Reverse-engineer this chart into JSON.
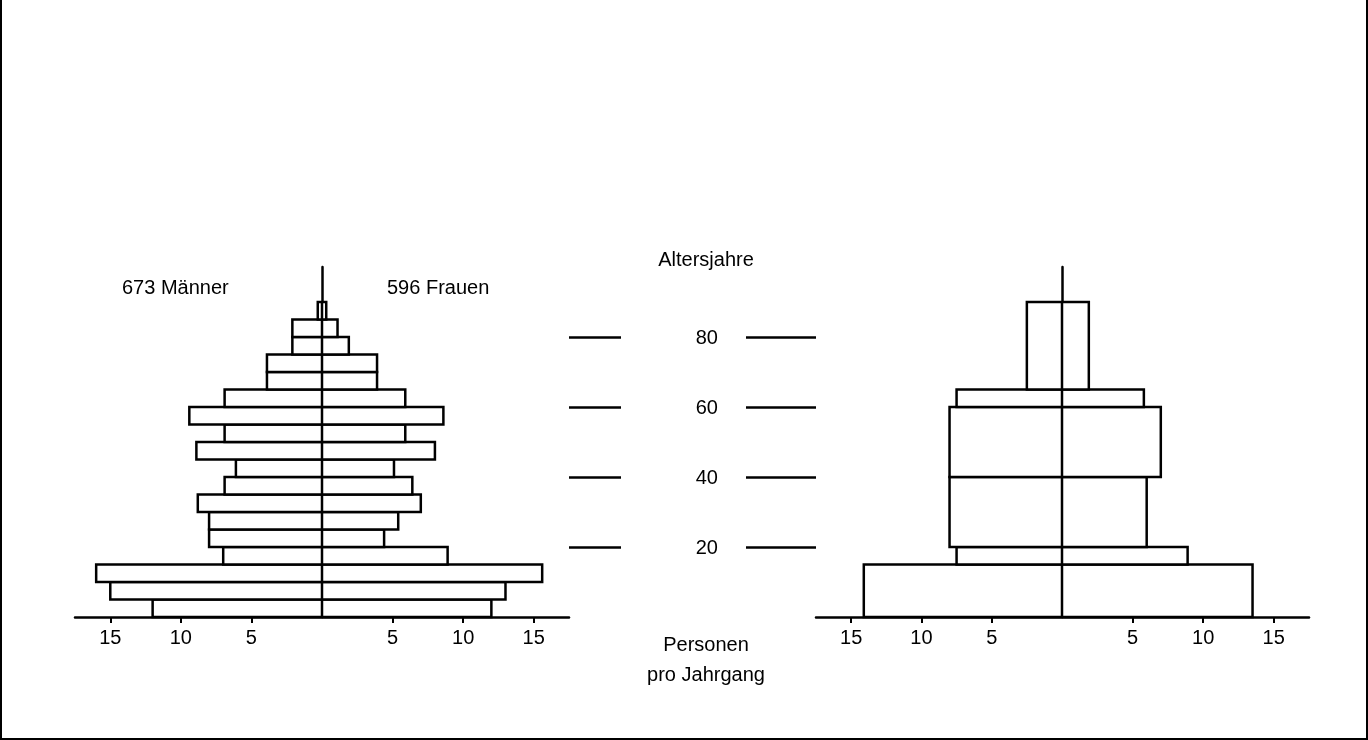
{
  "chart_data": [
    {
      "type": "histogram",
      "orientation": "horizontal",
      "title": "673 Männer",
      "bins": [
        0,
        5,
        10,
        15,
        20,
        25,
        30,
        35,
        40,
        45,
        50,
        55,
        60,
        65,
        70,
        75,
        80,
        85,
        90
      ],
      "values": [
        12,
        15,
        16,
        7,
        8,
        8,
        8.8,
        6.9,
        6.1,
        8.9,
        6.9,
        9.4,
        6.9,
        3.9,
        3.9,
        2.1,
        2.1,
        0.3
      ],
      "color": "#ffffff",
      "xlim": [
        17.5,
        0
      ],
      "xticks": [
        15,
        10,
        5
      ],
      "ylim": [
        0,
        100
      ],
      "tick_labels": "x",
      "grid": false
    },
    {
      "type": "histogram",
      "orientation": "horizontal",
      "title": "596 Frauen",
      "bins": [
        0,
        5,
        10,
        15,
        20,
        25,
        30,
        35,
        40,
        45,
        50,
        55,
        60,
        65,
        70,
        75,
        80,
        85,
        90
      ],
      "values": [
        12,
        13,
        15.6,
        8.9,
        4.4,
        5.4,
        7,
        6.4,
        5.1,
        8,
        5.9,
        8.6,
        5.9,
        3.9,
        3.9,
        1.9,
        1.1,
        0.3
      ],
      "color": "#ffffff",
      "xlim": [
        0,
        17.5
      ],
      "xticks": [
        5,
        10,
        15
      ],
      "ylim": [
        0,
        100
      ],
      "yticks": [
        {
          "value": 20,
          "label": null
        },
        {
          "value": 40,
          "label": null
        },
        {
          "value": 60,
          "label": null
        },
        {
          "value": 80,
          "label": null
        }
      ],
      "tick_labels": "x",
      "grid": false
    },
    {
      "type": "histogram",
      "orientation": "horizontal",
      "ylabel": "Altersjahre",
      "xlabel": "Personen\npro Jahrgang",
      "bins": [
        0,
        15,
        20,
        40,
        60,
        65,
        90
      ],
      "values": [
        14.1,
        7.5,
        8,
        8,
        7.5,
        2.5
      ],
      "color": "#ffffff",
      "xlim": [
        17.5,
        0
      ],
      "xticks": [
        15,
        10,
        5
      ],
      "ylim": [
        0,
        100
      ],
      "yticks": [
        20,
        40,
        60,
        80
      ],
      "grid": false
    },
    {
      "type": "histogram",
      "orientation": "horizontal",
      "bins": [
        0,
        15,
        20,
        40,
        60,
        65,
        90
      ],
      "values": [
        13.5,
        8.9,
        6,
        7,
        5.8,
        1.9
      ],
      "color": "#ffffff",
      "xlim": [
        0,
        17.5
      ],
      "xticks": [
        5,
        10,
        15
      ],
      "ylim": [
        0,
        100
      ],
      "tick_labels": "x",
      "grid": false
    }
  ]
}
